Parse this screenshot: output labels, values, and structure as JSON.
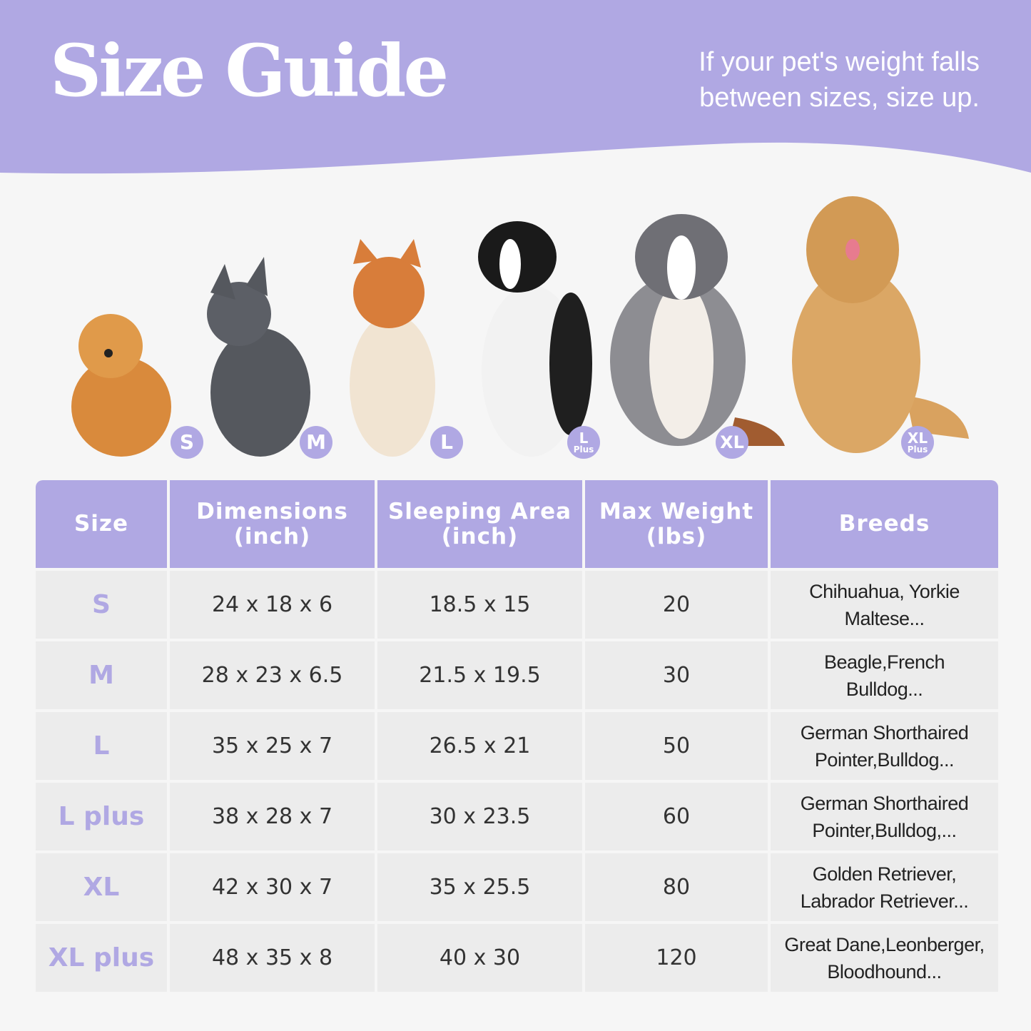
{
  "header": {
    "title": "Size Guide",
    "tip_line1": "If your pet's weight falls",
    "tip_line2": "between sizes, size up."
  },
  "colors": {
    "accent": "#b0a8e3",
    "background": "#f6f6f6",
    "row": "#ececec"
  },
  "dogs": [
    {
      "name": "pomeranian",
      "badge": "S",
      "badge_sub": ""
    },
    {
      "name": "french-bulldog",
      "badge": "M",
      "badge_sub": ""
    },
    {
      "name": "shiba-inu",
      "badge": "L",
      "badge_sub": ""
    },
    {
      "name": "border-collie",
      "badge": "L",
      "badge_sub": "Plus"
    },
    {
      "name": "australian-shepherd",
      "badge": "XL",
      "badge_sub": ""
    },
    {
      "name": "golden-retriever",
      "badge": "XL",
      "badge_sub": "Plus"
    }
  ],
  "table": {
    "headers": [
      {
        "l1": "Size",
        "l2": ""
      },
      {
        "l1": "Dimensions",
        "l2": "(inch)"
      },
      {
        "l1": "Sleeping Area",
        "l2": "(inch)"
      },
      {
        "l1": "Max Weight",
        "l2": "(lbs)"
      },
      {
        "l1": "Breeds",
        "l2": ""
      }
    ],
    "rows": [
      {
        "size": "S",
        "dimensions": "24 x 18 x 6",
        "sleeping": "18.5 x 15",
        "weight": "20",
        "breeds1": "Chihuahua, Yorkie",
        "breeds2": "Maltese..."
      },
      {
        "size": "M",
        "dimensions": "28 x 23 x 6.5",
        "sleeping": "21.5 x 19.5",
        "weight": "30",
        "breeds1": "Beagle,French",
        "breeds2": "Bulldog..."
      },
      {
        "size": "L",
        "dimensions": "35 x 25 x 7",
        "sleeping": "26.5 x 21",
        "weight": "50",
        "breeds1": "German Shorthaired",
        "breeds2": "Pointer,Bulldog..."
      },
      {
        "size": "L plus",
        "dimensions": "38 x 28 x 7",
        "sleeping": "30 x 23.5",
        "weight": "60",
        "breeds1": "German Shorthaired",
        "breeds2": "Pointer,Bulldog,..."
      },
      {
        "size": "XL",
        "dimensions": "42 x 30 x 7",
        "sleeping": "35 x 25.5",
        "weight": "80",
        "breeds1": "Golden Retriever,",
        "breeds2": "Labrador Retriever..."
      },
      {
        "size": "XL plus",
        "dimensions": "48 x 35 x 8",
        "sleeping": "40 x 30",
        "weight": "120",
        "breeds1": "Great Dane,Leonberger,",
        "breeds2": "Bloodhound..."
      }
    ]
  }
}
